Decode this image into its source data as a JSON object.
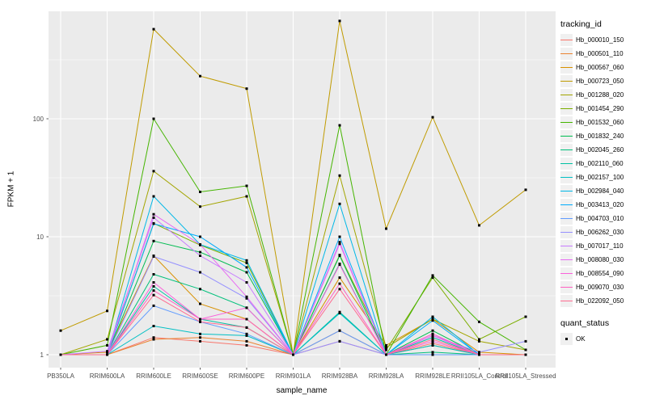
{
  "chart_data": {
    "type": "line",
    "title": "",
    "xlabel": "sample_name",
    "ylabel": "FPKM + 1",
    "y_scale": "log10",
    "y_ticks": [
      1,
      10,
      100
    ],
    "y_tick_labels": [
      "1",
      "10",
      "100"
    ],
    "y_minor_ticks": [
      3.162,
      31.62,
      316.2
    ],
    "ylim": [
      1,
      800
    ],
    "grid": "white major gridlines on gray panel, horizontal minors at half-decades",
    "legend_position": "right",
    "panel_bg": "#EBEBEB",
    "gridline_color": "#FFFFFF",
    "point_color": "#000000",
    "point_shape": "small black square",
    "categories": [
      "PB350LA",
      "RRIM600LA",
      "RRIM600LE",
      "RRIM600SE",
      "RRIM600PE",
      "RRIM901LA",
      "RRIM928BA",
      "RRIM928LA",
      "RRIM928LE",
      "RRII105LA_Control",
      "RRII105LA_Stressed"
    ],
    "series": [
      {
        "name": "Hb_000010_150",
        "color": "#F8766D",
        "values": [
          1,
          1,
          1.4,
          1.3,
          1.2,
          1,
          1.3,
          1,
          1.25,
          1,
          1
        ]
      },
      {
        "name": "Hb_000501_110",
        "color": "#EA8331",
        "values": [
          1,
          1,
          1.35,
          1.4,
          1.3,
          1,
          1.6,
          1,
          1.2,
          1,
          1
        ]
      },
      {
        "name": "Hb_000567_060",
        "color": "#D89000",
        "values": [
          1,
          1.05,
          6.9,
          2.7,
          2.0,
          1,
          4.5,
          1.2,
          2.0,
          1.05,
          1
        ]
      },
      {
        "name": "Hb_000723_050",
        "color": "#C09B00",
        "values": [
          1.6,
          2.35,
          575,
          230,
          180,
          1,
          675,
          11.7,
          103,
          12.5,
          25
        ]
      },
      {
        "name": "Hb_001288_020",
        "color": "#A3A500",
        "values": [
          1,
          1.35,
          36,
          18,
          22,
          1,
          33,
          1.15,
          2.0,
          1.3,
          1.1
        ]
      },
      {
        "name": "Hb_001454_290",
        "color": "#7CAE00",
        "values": [
          1,
          1,
          13,
          8.5,
          6.0,
          1,
          7.0,
          1.1,
          4.5,
          1.35,
          2.1
        ]
      },
      {
        "name": "Hb_001532_060",
        "color": "#45B500",
        "values": [
          1,
          1.2,
          100,
          24,
          27,
          1,
          88,
          1,
          4.7,
          1.9,
          1.1
        ]
      },
      {
        "name": "Hb_001832_240",
        "color": "#00BC51",
        "values": [
          1,
          1,
          9.2,
          7.4,
          5.0,
          1,
          6.9,
          1,
          1.6,
          1,
          1
        ]
      },
      {
        "name": "Hb_002045_260",
        "color": "#00C07B",
        "values": [
          1,
          1,
          4.8,
          3.6,
          2.5,
          1,
          5.9,
          1,
          1.05,
          1,
          1
        ]
      },
      {
        "name": "Hb_002110_060",
        "color": "#00C1A3",
        "values": [
          1,
          1,
          3.8,
          2.0,
          1.7,
          1,
          2.3,
          1,
          1.4,
          1,
          1
        ]
      },
      {
        "name": "Hb_002157_100",
        "color": "#00BFC4",
        "values": [
          1,
          1,
          1.75,
          1.5,
          1.45,
          1,
          2.25,
          1,
          1.2,
          1,
          1
        ]
      },
      {
        "name": "Hb_002984_040",
        "color": "#00B8E7",
        "values": [
          1,
          1,
          22,
          8.6,
          6.3,
          1,
          19,
          1,
          2.1,
          1,
          1
        ]
      },
      {
        "name": "Hb_003413_020",
        "color": "#00ACFC",
        "values": [
          1,
          1,
          12.9,
          10,
          5.5,
          1,
          10,
          1,
          1.95,
          1,
          1
        ]
      },
      {
        "name": "Hb_004703_010",
        "color": "#619CFF",
        "values": [
          1,
          1,
          2.6,
          1.9,
          1.5,
          1,
          1.6,
          1,
          1.0,
          1,
          1
        ]
      },
      {
        "name": "Hb_006262_030",
        "color": "#9590FF",
        "values": [
          1,
          1,
          6.8,
          5.0,
          3.0,
          1,
          1.3,
          1,
          1.45,
          1.05,
          1.3
        ]
      },
      {
        "name": "Hb_007017_110",
        "color": "#C77CFF",
        "values": [
          1,
          1.07,
          14.5,
          6.9,
          4.1,
          1,
          9.0,
          1,
          1.5,
          1,
          1
        ]
      },
      {
        "name": "Hb_008080_030",
        "color": "#E76BF3",
        "values": [
          1,
          1,
          15.5,
          8.6,
          3.1,
          1,
          8.7,
          1,
          1.45,
          1,
          1
        ]
      },
      {
        "name": "Hb_008554_090",
        "color": "#FA62DB",
        "values": [
          1,
          1,
          4.1,
          2.0,
          2.5,
          1,
          5.8,
          1,
          1.3,
          1,
          1
        ]
      },
      {
        "name": "Hb_009070_030",
        "color": "#FF61C2",
        "values": [
          1,
          1,
          3.5,
          2.0,
          2.0,
          1,
          4.0,
          1,
          1.5,
          1,
          1
        ]
      },
      {
        "name": "Hb_022092_050",
        "color": "#FF6C91",
        "values": [
          1,
          1,
          3.2,
          1.9,
          1.7,
          1,
          3.6,
          1,
          1.35,
          1,
          1
        ]
      }
    ]
  },
  "legend": {
    "tracking_title": "tracking_id",
    "quant_title": "quant_status",
    "quant_items": [
      {
        "label": "OK"
      }
    ]
  }
}
